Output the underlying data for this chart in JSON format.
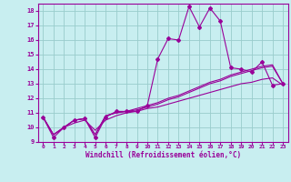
{
  "xlabel": "Windchill (Refroidissement éolien,°C)",
  "xlim": [
    -0.5,
    23.5
  ],
  "ylim": [
    9,
    18.5
  ],
  "yticks": [
    9,
    10,
    11,
    12,
    13,
    14,
    15,
    16,
    17,
    18
  ],
  "xticks": [
    0,
    1,
    2,
    3,
    4,
    5,
    6,
    7,
    8,
    9,
    10,
    11,
    12,
    13,
    14,
    15,
    16,
    17,
    18,
    19,
    20,
    21,
    22,
    23
  ],
  "bg_color": "#c8eef0",
  "line_color": "#990099",
  "grid_color": "#99cccc",
  "line1_x": [
    0,
    1,
    2,
    3,
    4,
    5,
    6,
    7,
    8,
    9,
    10,
    11,
    12,
    13,
    14,
    15,
    16,
    17,
    18,
    19,
    20,
    21,
    22,
    23
  ],
  "line1_y": [
    10.7,
    9.3,
    10.0,
    10.5,
    10.6,
    9.3,
    10.7,
    11.1,
    11.1,
    11.1,
    11.5,
    14.7,
    16.1,
    16.0,
    18.3,
    16.9,
    18.2,
    17.3,
    14.1,
    14.0,
    13.8,
    14.5,
    12.9,
    13.0
  ],
  "line2_x": [
    0,
    1,
    2,
    3,
    4,
    5,
    6,
    7,
    8,
    9,
    10,
    11,
    12,
    13,
    14,
    15,
    16,
    17,
    18,
    19,
    20,
    21,
    22,
    23
  ],
  "line2_y": [
    10.7,
    9.5,
    10.0,
    10.5,
    10.6,
    9.5,
    10.8,
    11.0,
    11.1,
    11.2,
    11.4,
    11.6,
    11.9,
    12.1,
    12.4,
    12.7,
    13.0,
    13.2,
    13.5,
    13.7,
    13.9,
    14.1,
    14.2,
    13.0
  ],
  "line3_x": [
    0,
    1,
    2,
    3,
    4,
    5,
    6,
    7,
    8,
    9,
    10,
    11,
    12,
    13,
    14,
    15,
    16,
    17,
    18,
    19,
    20,
    21,
    22,
    23
  ],
  "line3_y": [
    10.7,
    9.5,
    10.0,
    10.5,
    10.6,
    9.5,
    10.8,
    11.0,
    11.1,
    11.3,
    11.5,
    11.7,
    12.0,
    12.2,
    12.5,
    12.8,
    13.1,
    13.3,
    13.6,
    13.8,
    14.0,
    14.2,
    14.3,
    13.0
  ],
  "line4_x": [
    0,
    1,
    2,
    3,
    4,
    5,
    6,
    7,
    8,
    9,
    10,
    11,
    12,
    13,
    14,
    15,
    16,
    17,
    18,
    19,
    20,
    21,
    22,
    23
  ],
  "line4_y": [
    10.7,
    9.5,
    10.0,
    10.3,
    10.5,
    9.8,
    10.5,
    10.8,
    11.0,
    11.1,
    11.3,
    11.4,
    11.6,
    11.8,
    12.0,
    12.2,
    12.4,
    12.6,
    12.8,
    13.0,
    13.1,
    13.3,
    13.4,
    12.9
  ]
}
